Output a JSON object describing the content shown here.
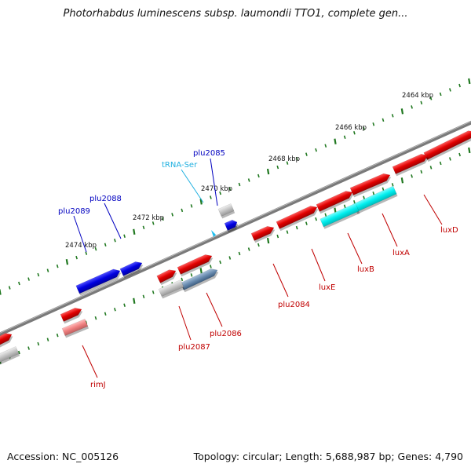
{
  "title": "Photorhabdus luminescens subsp. laumondii TTO1, complete gen...",
  "footer": {
    "accession": "Accession: NC_005126",
    "summary": "Topology: circular; Length: 5,688,987 bp; Genes: 4,790"
  },
  "colors": {
    "backbone": "#808080",
    "tick": "#207820",
    "forward_gene": "#e00000",
    "reverse_gene": "#0000e0",
    "rna": "#00e0e0",
    "pseudo_gene": "#bfbfbf",
    "rna_label": "#20b0e0"
  },
  "scale_labels": [
    "2464 kbp",
    "2466 kbp",
    "2468 kbp",
    "2470 kbp",
    "2472 kbp",
    "2474 kbp"
  ],
  "gene_labels": {
    "plu2085": "plu2085",
    "trna_ser": "tRNA-Ser",
    "plu2088": "plu2088",
    "plu2089": "plu2089",
    "plu2084": "plu2084",
    "luxE": "luxE",
    "luxB": "luxB",
    "luxA": "luxA",
    "luxD": "luxD",
    "plu2087": "plu2087",
    "plu2086": "plu2086",
    "rimJ": "rimJ"
  }
}
